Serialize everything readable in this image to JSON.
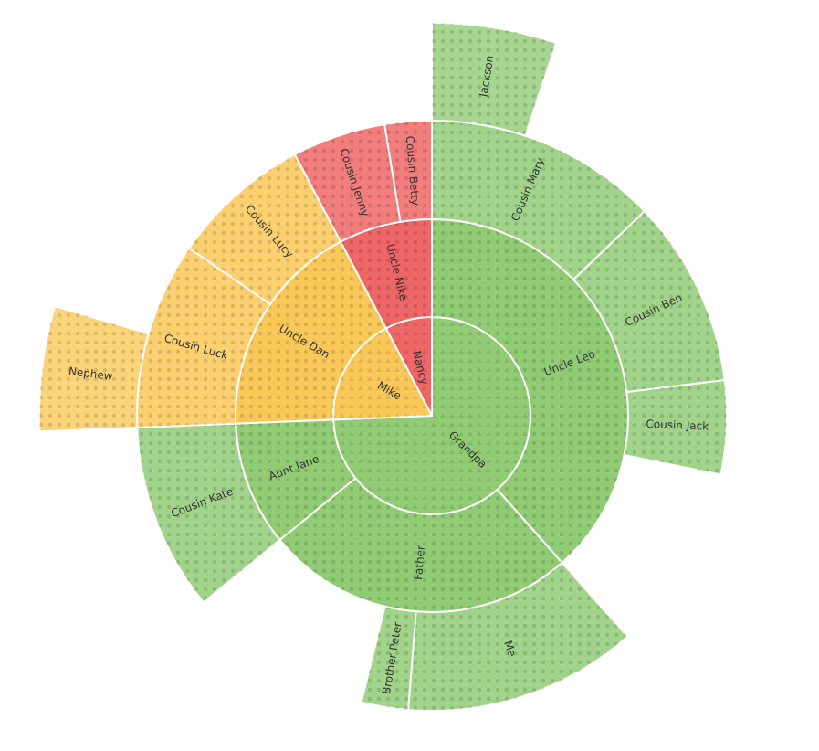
{
  "chart_data": {
    "type": "sunburst",
    "nodes": [
      {
        "name": "Grandpa",
        "value": 29,
        "color": "#91cc75",
        "children": [
          {
            "name": "Uncle Leo",
            "value": 15,
            "children": [
              {
                "name": "Cousin Mary",
                "value": 5,
                "children": [
                  {
                    "name": "Jackson",
                    "value": 2
                  }
                ]
              },
              {
                "name": "Cousin Ben",
                "value": 4
              },
              {
                "name": "Cousin Jack",
                "value": 2
              }
            ]
          },
          {
            "name": "Father",
            "value": 10,
            "children": [
              {
                "name": "Me",
                "value": 5
              },
              {
                "name": "Brother Peter",
                "value": 1
              }
            ]
          },
          {
            "name": "Aunt Jane",
            "value": 4,
            "children": [
              {
                "name": "Cousin Kate",
                "value": 4
              }
            ]
          }
        ]
      },
      {
        "name": "Mike",
        "value": 7,
        "color": "#fac858",
        "children": [
          {
            "name": "Uncle Dan",
            "value": 7,
            "children": [
              {
                "name": "Cousin Luck",
                "value": 4,
                "children": [
                  {
                    "name": "Nephew",
                    "value": 2
                  }
                ]
              },
              {
                "name": "Cousin Lucy",
                "value": 3
              }
            ]
          }
        ]
      },
      {
        "name": "Nancy",
        "value": 3,
        "color": "#ee6666",
        "children": [
          {
            "name": "Uncle Nike",
            "value": 3,
            "children": [
              {
                "name": "Cousin Jenny",
                "value": 2
              },
              {
                "name": "Cousin Betty",
                "value": 1
              }
            ]
          }
        ]
      }
    ]
  }
}
